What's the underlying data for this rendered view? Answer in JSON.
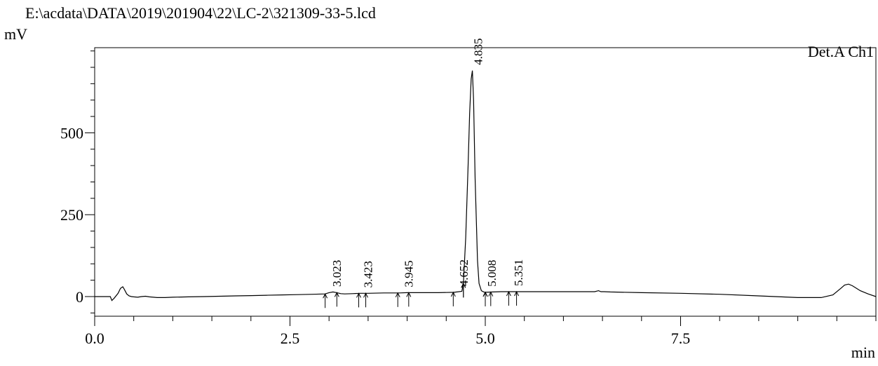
{
  "header": {
    "file_path": "E:\\acdata\\DATA\\2019\\201904\\22\\LC-2\\321309-33-5.lcd",
    "y_unit": "mV",
    "x_unit": "min"
  },
  "chart_data": {
    "type": "line",
    "title": "",
    "channel_label": "Det.A Ch1",
    "xlabel": "min",
    "ylabel": "mV",
    "xlim": [
      0.0,
      10.0
    ],
    "ylim": [
      -60,
      760
    ],
    "x_ticks": [
      0.0,
      2.5,
      5.0,
      7.5
    ],
    "x_tick_labels": [
      "0.0",
      "2.5",
      "5.0",
      "7.5"
    ],
    "y_ticks": [
      0,
      250,
      500
    ],
    "y_tick_labels": [
      "0",
      "250",
      "500"
    ],
    "grid": false,
    "series": [
      {
        "x": [
          0.0,
          0.15,
          0.2,
          0.22,
          0.25,
          0.3,
          0.33,
          0.36,
          0.38,
          0.41,
          0.44,
          0.47,
          0.5,
          0.55,
          0.6,
          0.65,
          0.7,
          0.75,
          0.8,
          0.9,
          1.0,
          1.2,
          1.4,
          1.6,
          1.8,
          2.0,
          2.2,
          2.4,
          2.6,
          2.8,
          2.95,
          3.0,
          3.05,
          3.1,
          3.15,
          3.2,
          3.3,
          3.4,
          3.5,
          3.7,
          3.9,
          4.0,
          4.2,
          4.4,
          4.6,
          4.7,
          4.72,
          4.75,
          4.78,
          4.8,
          4.82,
          4.835,
          4.85,
          4.87,
          4.9,
          4.92,
          4.95,
          4.98,
          5.0,
          5.1,
          5.2,
          5.3,
          5.5,
          6.0,
          6.4,
          6.45,
          6.48,
          6.52,
          6.6,
          7.0,
          7.5,
          8.0,
          8.5,
          9.0,
          9.3,
          9.45,
          9.55,
          9.6,
          9.65,
          9.7,
          9.8,
          9.9,
          10.0
        ],
        "y": [
          0,
          0,
          0,
          -12,
          -5,
          10,
          25,
          30,
          22,
          8,
          2,
          0,
          -1,
          -2,
          0,
          1,
          -1,
          -2,
          -3,
          -3,
          -2,
          -1,
          0,
          1,
          2,
          3,
          4,
          5,
          6,
          7,
          8,
          12,
          14,
          12,
          9,
          8,
          9,
          10,
          10,
          11,
          11,
          12,
          12,
          12,
          13,
          16,
          40,
          180,
          400,
          560,
          665,
          690,
          600,
          360,
          110,
          40,
          18,
          14,
          13,
          14,
          15,
          15,
          15,
          15,
          15,
          18,
          15,
          15,
          14,
          12,
          10,
          7,
          2,
          -3,
          -3,
          5,
          25,
          35,
          38,
          33,
          18,
          8,
          0
        ]
      }
    ],
    "peaks": [
      {
        "rt": "3.023",
        "start": 2.95,
        "end": 3.1
      },
      {
        "rt": "3.423",
        "start": 3.38,
        "end": 3.47
      },
      {
        "rt": "3.945",
        "start": 3.88,
        "end": 4.02
      },
      {
        "rt": "4.652",
        "start": 4.59,
        "end": 4.72
      },
      {
        "rt": "4.835",
        "start": 4.72,
        "end": 5.0
      },
      {
        "rt": "5.008",
        "start": 5.0,
        "end": 5.07
      },
      {
        "rt": "5.351",
        "start": 5.3,
        "end": 5.4
      }
    ]
  }
}
